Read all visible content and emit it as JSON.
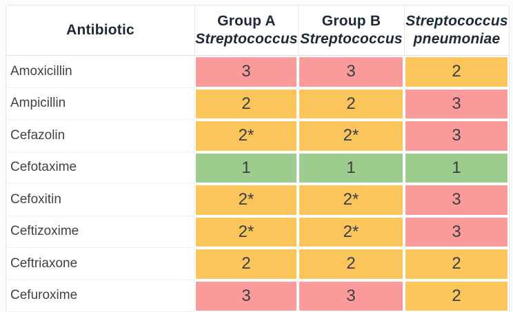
{
  "colors": {
    "red": "#fb9a9a",
    "yellow": "#fbc55c",
    "green": "#9dcc8f",
    "header_text": "#1e2936",
    "row_label_text": "#414141",
    "value_text": "#3a3e42",
    "table_border": "#e4e4e4",
    "row_divider": "#efefef",
    "page_background": "#fcfcfc"
  },
  "chart_data": {
    "type": "table",
    "title": "",
    "columns": [
      {
        "lines": [
          {
            "text": "Antibiotic",
            "italic": false
          }
        ]
      },
      {
        "lines": [
          {
            "text": "Group A",
            "italic": false
          },
          {
            "text": "Streptococcus",
            "italic": true
          }
        ]
      },
      {
        "lines": [
          {
            "text": "Group B",
            "italic": false
          },
          {
            "text": "Streptococcus",
            "italic": true
          }
        ]
      },
      {
        "lines": [
          {
            "text": "Streptococcus",
            "italic": true
          },
          {
            "text": "pneumoniae",
            "italic": true
          }
        ]
      }
    ],
    "rows": [
      {
        "antibiotic": "Amoxicillin",
        "cells": [
          {
            "value": "3",
            "color": "red"
          },
          {
            "value": "3",
            "color": "red"
          },
          {
            "value": "2",
            "color": "yellow"
          }
        ]
      },
      {
        "antibiotic": "Ampicillin",
        "cells": [
          {
            "value": "2",
            "color": "yellow"
          },
          {
            "value": "2",
            "color": "yellow"
          },
          {
            "value": "3",
            "color": "red"
          }
        ]
      },
      {
        "antibiotic": "Cefazolin",
        "cells": [
          {
            "value": "2*",
            "color": "yellow"
          },
          {
            "value": "2*",
            "color": "yellow"
          },
          {
            "value": "3",
            "color": "red"
          }
        ]
      },
      {
        "antibiotic": "Cefotaxime",
        "cells": [
          {
            "value": "1",
            "color": "green"
          },
          {
            "value": "1",
            "color": "green"
          },
          {
            "value": "1",
            "color": "green"
          }
        ]
      },
      {
        "antibiotic": "Cefoxitin",
        "cells": [
          {
            "value": "2*",
            "color": "yellow"
          },
          {
            "value": "2*",
            "color": "yellow"
          },
          {
            "value": "3",
            "color": "red"
          }
        ]
      },
      {
        "antibiotic": "Ceftizoxime",
        "cells": [
          {
            "value": "2*",
            "color": "yellow"
          },
          {
            "value": "2*",
            "color": "yellow"
          },
          {
            "value": "3",
            "color": "red"
          }
        ]
      },
      {
        "antibiotic": "Ceftriaxone",
        "cells": [
          {
            "value": "2",
            "color": "yellow"
          },
          {
            "value": "2",
            "color": "yellow"
          },
          {
            "value": "2",
            "color": "yellow"
          }
        ]
      },
      {
        "antibiotic": "Cefuroxime",
        "cells": [
          {
            "value": "3",
            "color": "red"
          },
          {
            "value": "3",
            "color": "red"
          },
          {
            "value": "2",
            "color": "yellow"
          }
        ]
      }
    ],
    "value_color_coding": {
      "1": "green",
      "2": "yellow",
      "3": "red"
    }
  }
}
